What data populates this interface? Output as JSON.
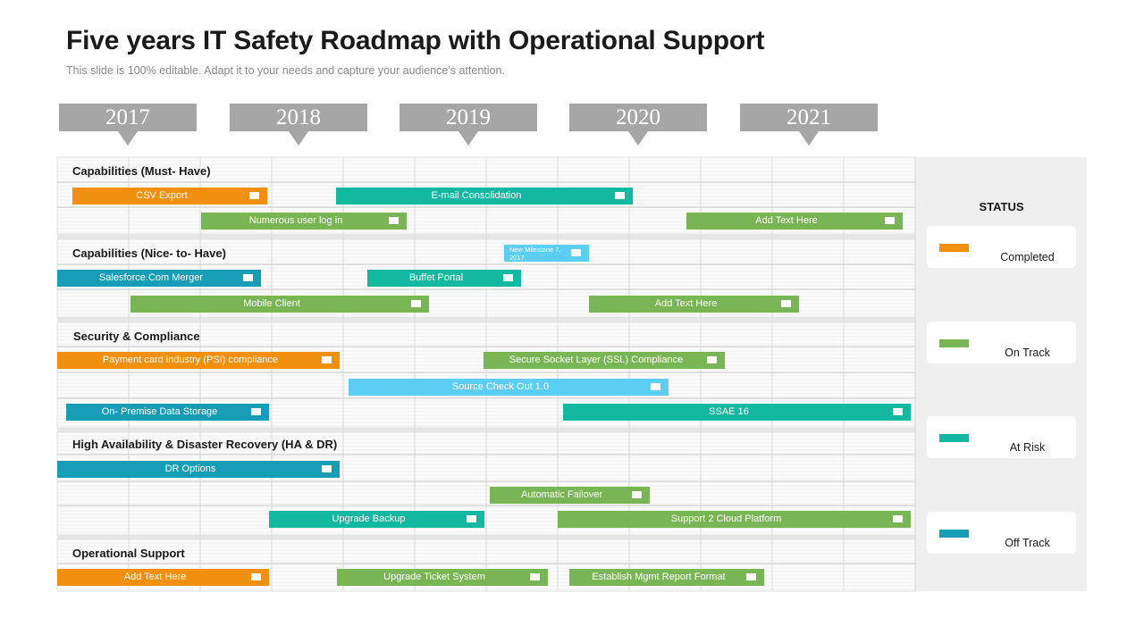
{
  "header": {
    "title": "Five years IT Safety Roadmap with Operational Support",
    "subtitle": "This slide is 100% editable. Adapt it to your needs and capture your audience's attention."
  },
  "colors": {
    "completed": "#f18f0f",
    "on_track": "#78b655",
    "at_risk": "#12b8a0",
    "off_track": "#189db7",
    "light": "#5ccdf3",
    "year_box": "#a6a6a6",
    "panel": "#efefef"
  },
  "years": [
    "2017",
    "2018",
    "2019",
    "2020",
    "2021"
  ],
  "sections": [
    {
      "title": "Capabilities (Must- Have)",
      "bars": [
        {
          "label": "CSV Export",
          "status": "completed"
        },
        {
          "label": "E-mail Consolidation",
          "status": "at_risk"
        },
        {
          "label": "Numerous user log in",
          "status": "on_track"
        },
        {
          "label": "Add Text Here",
          "status": "on_track"
        }
      ]
    },
    {
      "title": "Capabilities (Nice- to- Have)",
      "bars": [
        {
          "label": "New Milestone 7, 2017",
          "status": "light"
        },
        {
          "label": "Salesforce.Com Merger",
          "status": "off_track"
        },
        {
          "label": "Buffet Portal",
          "status": "at_risk"
        },
        {
          "label": "Mobile Client",
          "status": "on_track"
        },
        {
          "label": "Add Text Here",
          "status": "on_track"
        }
      ]
    },
    {
      "title": "Security & Compliance",
      "bars": [
        {
          "label": "Payment card industry (PSI) compliance",
          "status": "completed"
        },
        {
          "label": "Secure Socket Layer (SSL) Compliance",
          "status": "on_track"
        },
        {
          "label": "Source Check Out 1.0",
          "status": "light"
        },
        {
          "label": "On- Premise Data Storage",
          "status": "off_track"
        },
        {
          "label": "SSAE 16",
          "status": "at_risk"
        }
      ]
    },
    {
      "title": "High Availability & Disaster Recovery (HA & DR)",
      "bars": [
        {
          "label": "DR Options",
          "status": "off_track"
        },
        {
          "label": "Automatic Failover",
          "status": "on_track"
        },
        {
          "label": "Upgrade Backup",
          "status": "at_risk"
        },
        {
          "label": "Support 2 Cloud Platform",
          "status": "on_track"
        }
      ]
    },
    {
      "title": "Operational Support",
      "bars": [
        {
          "label": "Add Text Here",
          "status": "completed"
        },
        {
          "label": "Upgrade Ticket System",
          "status": "on_track"
        },
        {
          "label": "Establish Mgmt Report Format",
          "status": "on_track"
        }
      ]
    }
  ],
  "status_legend": {
    "title": "STATUS",
    "items": [
      {
        "label": "Completed",
        "status": "completed"
      },
      {
        "label": "On Track",
        "status": "on_track"
      },
      {
        "label": "At Risk",
        "status": "at_risk"
      },
      {
        "label": "Off Track",
        "status": "off_track"
      }
    ]
  }
}
